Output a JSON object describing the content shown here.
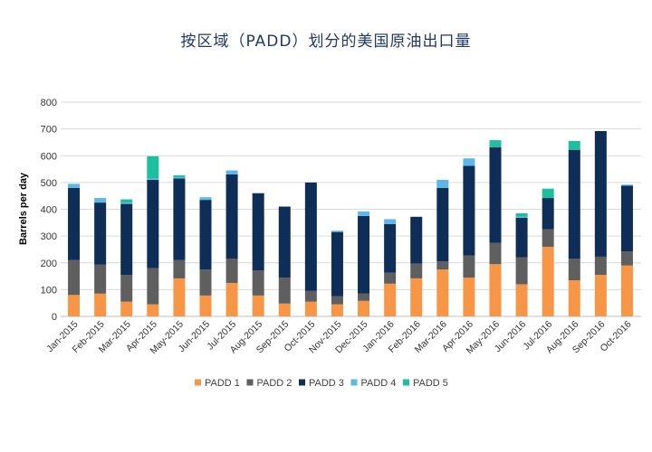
{
  "chart_data": {
    "type": "bar",
    "stacked": true,
    "title": "按区域（PADD）划分的美国原油出口量",
    "xlabel": "",
    "ylabel": "Barrels per day",
    "ylim": [
      0,
      800
    ],
    "yticks": [
      0,
      100,
      200,
      300,
      400,
      500,
      600,
      700,
      800
    ],
    "grid": true,
    "legend_position": "bottom",
    "categories": [
      "Jan-2015",
      "Feb-2015",
      "Mar-2015",
      "Apr-2015",
      "May-2015",
      "Jun-2015",
      "Jul-2015",
      "Aug-2015",
      "Sep-2015",
      "Oct-2015",
      "Nov-2015",
      "Dec-2015",
      "Jan-2016",
      "Feb-2016",
      "Mar-2016",
      "Apr-2016",
      "May-2016",
      "Jun-2016",
      "Jul-2016",
      "Aug-2016",
      "Sep-2016",
      "Oct-2016"
    ],
    "series": [
      {
        "name": "PADD 1",
        "color": "#f79646",
        "values": [
          80,
          85,
          55,
          45,
          142,
          78,
          125,
          78,
          48,
          55,
          45,
          58,
          122,
          142,
          175,
          145,
          195,
          120,
          260,
          135,
          155,
          190
        ]
      },
      {
        "name": "PADD 2",
        "color": "#5f5f5f",
        "values": [
          130,
          108,
          100,
          135,
          68,
          97,
          90,
          94,
          97,
          40,
          30,
          27,
          41,
          55,
          30,
          82,
          80,
          100,
          65,
          80,
          68,
          53
        ]
      },
      {
        "name": "PADD 3",
        "color": "#0e2d57",
        "values": [
          270,
          232,
          265,
          330,
          305,
          260,
          315,
          288,
          265,
          405,
          240,
          290,
          182,
          175,
          275,
          335,
          357,
          148,
          117,
          407,
          469,
          245
        ]
      },
      {
        "name": "PADD 4",
        "color": "#5db7e8",
        "values": [
          15,
          17,
          5,
          5,
          5,
          10,
          15,
          0,
          0,
          0,
          5,
          17,
          18,
          0,
          30,
          28,
          0,
          5,
          0,
          0,
          0,
          4
        ]
      },
      {
        "name": "PADD 5",
        "color": "#1dbf9f",
        "values": [
          0,
          0,
          12,
          83,
          7,
          0,
          0,
          0,
          0,
          0,
          0,
          0,
          0,
          0,
          0,
          0,
          26,
          12,
          35,
          33,
          0,
          0
        ]
      }
    ]
  }
}
